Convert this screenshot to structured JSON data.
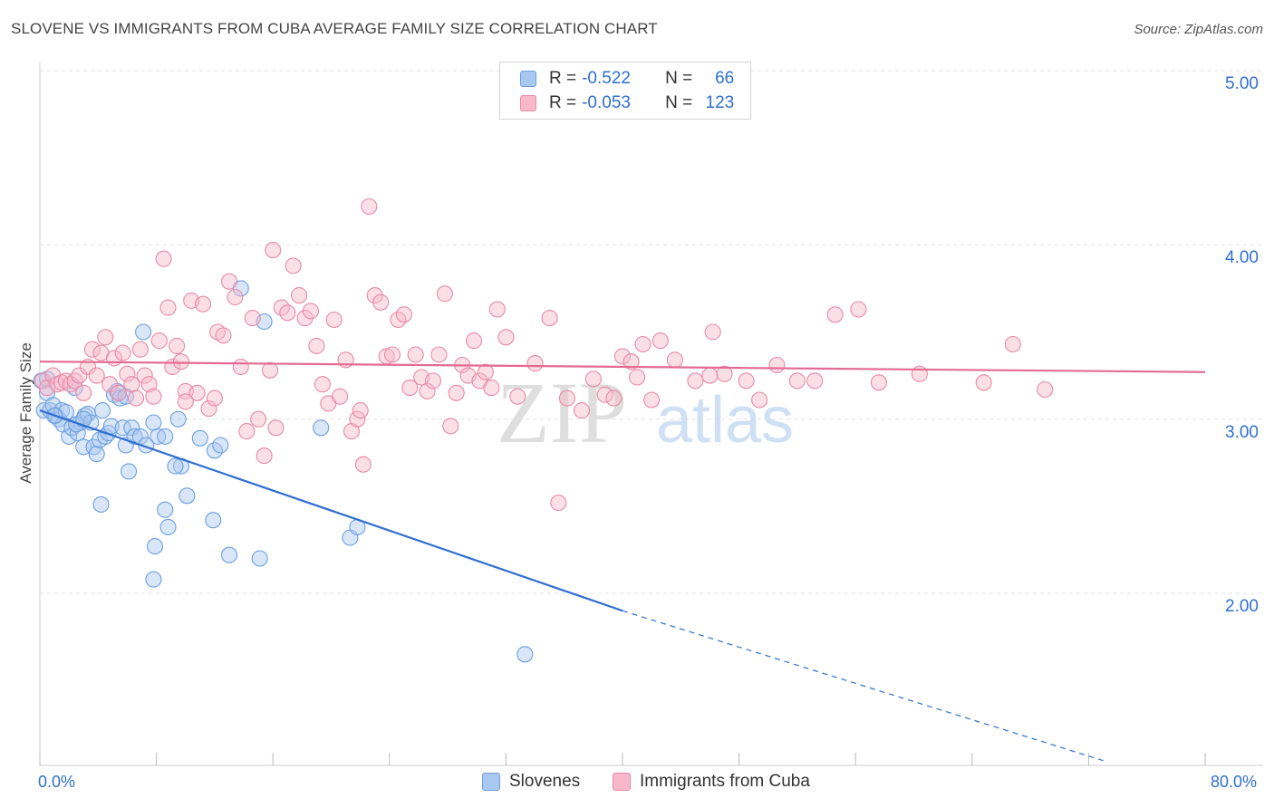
{
  "title": "SLOVENE VS IMMIGRANTS FROM CUBA AVERAGE FAMILY SIZE CORRELATION CHART",
  "source": "Source: ZipAtlas.com",
  "watermark": {
    "zip": "ZIP",
    "atlas": "atlas"
  },
  "legend": {
    "items": [
      {
        "r_label": "R =",
        "r_value": "-0.522",
        "n_label": "N =",
        "n_value": "66",
        "color": "#a8c8f0",
        "border": "#6d9fe0"
      },
      {
        "r_label": "R =",
        "r_value": "-0.053",
        "n_label": "N =",
        "n_value": "123",
        "color": "#f6b8ca",
        "border": "#e88aa8"
      }
    ]
  },
  "bottom_legend": [
    "Slovenes",
    "Immigrants from Cuba"
  ],
  "chart_data": {
    "type": "scatter",
    "title": "SLOVENE VS IMMIGRANTS FROM CUBA AVERAGE FAMILY SIZE CORRELATION CHART",
    "ylabel": "Average Family Size",
    "xlabel": "",
    "x_tick_labels": [
      "0.0%",
      "80.0%"
    ],
    "y_tick_labels": [
      "2.00",
      "3.00",
      "4.00",
      "5.00"
    ],
    "xlim": [
      0,
      80
    ],
    "ylim": [
      1.05,
      5.1
    ],
    "grid": "horizontal dashed",
    "legend_position": "top-center",
    "series": [
      {
        "name": "Slovenes",
        "color": "#6d9fe0",
        "fill": "rgba(168,200,240,0.45)",
        "trend": {
          "x0": 0,
          "y0": 3.05,
          "x1": 40,
          "y1": 1.9,
          "dash_to_x": 73,
          "dash_to_y": 1.04,
          "color": "#2f6fd0"
        },
        "points": [
          [
            0.1,
            3.22
          ],
          [
            0.3,
            3.05
          ],
          [
            0.5,
            3.15
          ],
          [
            0.7,
            3.05
          ],
          [
            0.9,
            3.08
          ],
          [
            1.1,
            3.02
          ],
          [
            1.3,
            3.0
          ],
          [
            1.5,
            3.05
          ],
          [
            1.6,
            2.97
          ],
          [
            1.8,
            3.04
          ],
          [
            2.0,
            2.9
          ],
          [
            2.2,
            2.95
          ],
          [
            2.4,
            3.18
          ],
          [
            2.6,
            2.92
          ],
          [
            2.8,
            2.98
          ],
          [
            3.0,
            2.84
          ],
          [
            3.1,
            3.02
          ],
          [
            3.3,
            3.03
          ],
          [
            3.5,
            2.98
          ],
          [
            3.7,
            2.84
          ],
          [
            3.9,
            2.8
          ],
          [
            4.1,
            2.88
          ],
          [
            4.3,
            3.05
          ],
          [
            4.5,
            2.9
          ],
          [
            4.7,
            2.92
          ],
          [
            4.9,
            2.96
          ],
          [
            5.1,
            3.14
          ],
          [
            5.3,
            3.16
          ],
          [
            5.5,
            3.12
          ],
          [
            5.7,
            2.95
          ],
          [
            5.9,
            2.85
          ],
          [
            6.1,
            2.7
          ],
          [
            6.3,
            2.95
          ],
          [
            6.5,
            2.9
          ],
          [
            6.9,
            2.9
          ],
          [
            7.1,
            3.5
          ],
          [
            7.3,
            2.85
          ],
          [
            7.8,
            2.98
          ],
          [
            8.1,
            2.9
          ],
          [
            8.6,
            2.9
          ],
          [
            9.5,
            3.0
          ],
          [
            9.7,
            2.73
          ],
          [
            10.1,
            2.56
          ],
          [
            11.0,
            2.89
          ],
          [
            12.0,
            2.82
          ],
          [
            12.4,
            2.85
          ],
          [
            13.8,
            3.75
          ],
          [
            15.4,
            3.56
          ],
          [
            11.9,
            2.42
          ],
          [
            8.6,
            2.48
          ],
          [
            8.8,
            2.38
          ],
          [
            7.9,
            2.27
          ],
          [
            7.8,
            2.08
          ],
          [
            13.0,
            2.22
          ],
          [
            15.1,
            2.2
          ],
          [
            19.3,
            2.95
          ],
          [
            21.3,
            2.32
          ],
          [
            21.8,
            2.38
          ],
          [
            33.3,
            1.65
          ],
          [
            4.2,
            2.51
          ],
          [
            0.5,
            3.23
          ],
          [
            1.0,
            3.02
          ],
          [
            2.5,
            2.97
          ],
          [
            3.0,
            3.0
          ],
          [
            5.9,
            3.13
          ],
          [
            9.3,
            2.73
          ]
        ]
      },
      {
        "name": "Immigrants from Cuba",
        "color": "#e88aa8",
        "fill": "rgba(246,184,202,0.45)",
        "trend": {
          "x0": 0,
          "y0": 3.33,
          "x1": 80,
          "y1": 3.27,
          "color": "#e36b93"
        },
        "points": [
          [
            0.2,
            3.22
          ],
          [
            0.5,
            3.18
          ],
          [
            0.9,
            3.25
          ],
          [
            1.2,
            3.2
          ],
          [
            1.5,
            3.21
          ],
          [
            1.8,
            3.22
          ],
          [
            2.1,
            3.2
          ],
          [
            2.4,
            3.22
          ],
          [
            2.7,
            3.25
          ],
          [
            3.0,
            3.15
          ],
          [
            3.3,
            3.3
          ],
          [
            3.6,
            3.4
          ],
          [
            3.9,
            3.25
          ],
          [
            4.2,
            3.38
          ],
          [
            4.5,
            3.47
          ],
          [
            4.8,
            3.2
          ],
          [
            5.1,
            3.35
          ],
          [
            5.4,
            3.15
          ],
          [
            5.7,
            3.38
          ],
          [
            6.0,
            3.26
          ],
          [
            6.3,
            3.2
          ],
          [
            6.6,
            3.12
          ],
          [
            6.9,
            3.4
          ],
          [
            7.2,
            3.25
          ],
          [
            7.5,
            3.2
          ],
          [
            7.8,
            3.13
          ],
          [
            8.2,
            3.45
          ],
          [
            8.5,
            3.92
          ],
          [
            8.8,
            3.64
          ],
          [
            9.1,
            3.3
          ],
          [
            9.4,
            3.42
          ],
          [
            9.7,
            3.33
          ],
          [
            10.0,
            3.16
          ],
          [
            10.4,
            3.68
          ],
          [
            10.8,
            3.15
          ],
          [
            11.2,
            3.66
          ],
          [
            11.6,
            3.06
          ],
          [
            12.0,
            3.12
          ],
          [
            12.2,
            3.5
          ],
          [
            12.6,
            3.48
          ],
          [
            13.0,
            3.79
          ],
          [
            13.4,
            3.7
          ],
          [
            13.8,
            3.3
          ],
          [
            14.2,
            2.93
          ],
          [
            14.6,
            3.58
          ],
          [
            15.0,
            3.0
          ],
          [
            15.4,
            2.79
          ],
          [
            15.8,
            3.28
          ],
          [
            16.2,
            2.95
          ],
          [
            16.6,
            3.64
          ],
          [
            17.0,
            3.61
          ],
          [
            17.4,
            3.88
          ],
          [
            17.8,
            3.71
          ],
          [
            18.2,
            3.58
          ],
          [
            18.6,
            3.62
          ],
          [
            19.0,
            3.42
          ],
          [
            19.4,
            3.2
          ],
          [
            19.8,
            3.09
          ],
          [
            20.2,
            3.57
          ],
          [
            20.6,
            3.13
          ],
          [
            21.0,
            3.34
          ],
          [
            21.4,
            2.93
          ],
          [
            21.8,
            3.0
          ],
          [
            22.2,
            2.74
          ],
          [
            22.6,
            4.22
          ],
          [
            23.0,
            3.71
          ],
          [
            23.4,
            3.67
          ],
          [
            23.8,
            3.36
          ],
          [
            24.2,
            3.37
          ],
          [
            24.6,
            3.57
          ],
          [
            25.0,
            3.6
          ],
          [
            25.4,
            3.18
          ],
          [
            25.8,
            3.37
          ],
          [
            26.2,
            3.24
          ],
          [
            26.6,
            3.16
          ],
          [
            27.0,
            3.22
          ],
          [
            27.4,
            3.37
          ],
          [
            27.8,
            3.72
          ],
          [
            28.2,
            2.96
          ],
          [
            28.6,
            3.15
          ],
          [
            29.0,
            3.31
          ],
          [
            29.4,
            3.25
          ],
          [
            29.8,
            3.45
          ],
          [
            30.2,
            3.22
          ],
          [
            30.6,
            3.27
          ],
          [
            31.0,
            3.18
          ],
          [
            31.4,
            3.63
          ],
          [
            32.0,
            3.47
          ],
          [
            32.8,
            3.13
          ],
          [
            34.0,
            3.32
          ],
          [
            35.0,
            3.58
          ],
          [
            35.6,
            2.52
          ],
          [
            36.2,
            3.12
          ],
          [
            37.2,
            3.05
          ],
          [
            38.0,
            3.23
          ],
          [
            38.8,
            3.14
          ],
          [
            39.4,
            3.12
          ],
          [
            40.0,
            3.36
          ],
          [
            40.6,
            3.33
          ],
          [
            41.4,
            3.43
          ],
          [
            42.0,
            3.11
          ],
          [
            42.6,
            3.45
          ],
          [
            43.6,
            3.34
          ],
          [
            45.0,
            3.22
          ],
          [
            46.2,
            3.5
          ],
          [
            47.0,
            3.26
          ],
          [
            48.5,
            3.22
          ],
          [
            49.4,
            3.11
          ],
          [
            50.6,
            3.31
          ],
          [
            52.0,
            3.22
          ],
          [
            54.6,
            3.6
          ],
          [
            56.2,
            3.63
          ],
          [
            57.6,
            3.21
          ],
          [
            60.4,
            3.26
          ],
          [
            64.8,
            3.21
          ],
          [
            66.8,
            3.43
          ],
          [
            69.0,
            3.17
          ],
          [
            53.2,
            3.22
          ],
          [
            41.0,
            3.24
          ],
          [
            46.0,
            3.25
          ],
          [
            16.0,
            3.97
          ],
          [
            10.0,
            3.1
          ],
          [
            22.0,
            3.05
          ]
        ]
      }
    ]
  }
}
